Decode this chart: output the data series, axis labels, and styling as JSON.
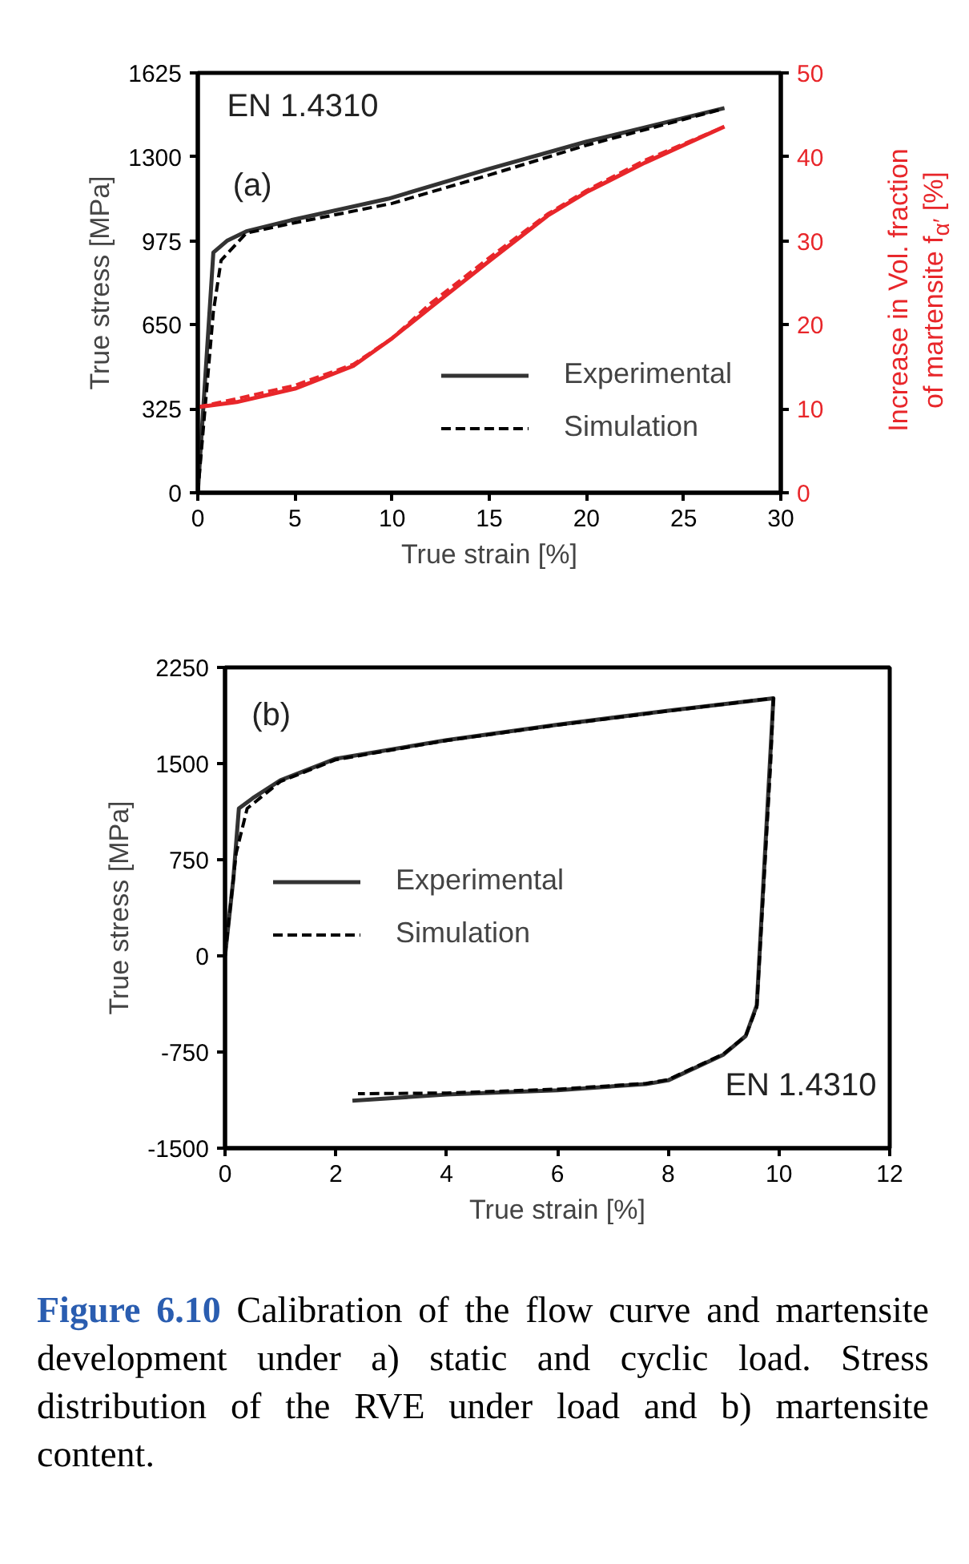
{
  "chart_data": [
    {
      "type": "line",
      "xlabel": "True strain [%]",
      "ylabel": "True stress [MPa]",
      "y2label": "Increase in Vol. fraction\nof martensite f$_{α′}$ [%]",
      "xlim": [
        0,
        30
      ],
      "xticks": [
        0,
        5,
        10,
        15,
        20,
        25,
        30
      ],
      "ylim": [
        0,
        1625
      ],
      "yticks": [
        0,
        325,
        650,
        975,
        1300,
        1625
      ],
      "y2lim": [
        0,
        50
      ],
      "y2ticks": [
        0,
        10,
        20,
        30,
        40,
        50
      ],
      "grid": false,
      "legend": "bottom right",
      "annotations": [
        "EN 1.4310",
        "(a)"
      ],
      "series": [
        {
          "name": "Experimental",
          "color": "#333333",
          "line_style": "solid",
          "x": [
            0,
            0.8,
            1.5,
            2.5,
            4.8,
            9.8,
            14.9,
            20,
            27.1
          ],
          "values": [
            0,
            930,
            975,
            1012,
            1055,
            1138,
            1252,
            1359,
            1489
          ]
        },
        {
          "name": "Simulation",
          "color": "#000000",
          "line_style": "dashed",
          "x": [
            0,
            0.8,
            1.2,
            2.5,
            5,
            10,
            15,
            20,
            27
          ],
          "values": [
            0,
            700,
            900,
            1005,
            1045,
            1120,
            1230,
            1345,
            1485
          ]
        },
        {
          "color": "#e8262a",
          "axis": "y2",
          "line_style": "solid",
          "x": [
            0,
            2,
            5,
            8,
            10,
            12,
            15,
            18,
            20,
            23,
            27.1
          ],
          "values": [
            10.2,
            10.8,
            12.4,
            15.1,
            18.4,
            22.1,
            27.6,
            33,
            35.8,
            39.3,
            43.6
          ]
        },
        {
          "color": "#e8262a",
          "axis": "y2",
          "line_style": "dashed",
          "x": [
            0,
            2,
            5,
            8,
            10,
            12,
            15,
            18,
            20,
            23,
            27
          ],
          "values": [
            10.2,
            11.2,
            12.8,
            15.3,
            18.4,
            22.6,
            28,
            33.2,
            36,
            39.6,
            43.5
          ]
        }
      ]
    },
    {
      "type": "line",
      "xlabel": "True strain [%]",
      "ylabel": "True stress [MPa]",
      "xlim": [
        0,
        12
      ],
      "xticks": [
        0,
        2,
        4,
        6,
        8,
        10,
        12
      ],
      "ylim": [
        -1500,
        2250
      ],
      "yticks": [
        -1500,
        -750,
        0,
        750,
        1500,
        2250
      ],
      "grid": false,
      "legend": "left",
      "annotations": [
        "(b)",
        "EN 1.4310",
        "Figure 6.10",
        "Calibration of the flow curve and martensite development under a) static and cyclic load. Stress distribution of the RVE under load and b) martensite content."
      ],
      "series": [
        {
          "name": "Experimental",
          "color": "#333333",
          "line_style": "solid",
          "x": [
            0,
            0.15,
            0.25,
            0.5,
            1,
            2,
            4,
            6,
            8,
            9.9,
            9.6,
            9.4,
            9,
            8,
            7.6,
            6,
            4,
            2.3
          ],
          "values": [
            0,
            600,
            1150,
            1230,
            1370,
            1538,
            1683,
            1803,
            1913,
            2010,
            -385,
            -625,
            -770,
            -971,
            -1000,
            -1048,
            -1082,
            -1130
          ]
        },
        {
          "name": "Simulation",
          "color": "#000000",
          "line_style": "dashed",
          "x": [
            0,
            0.2,
            0.4,
            1,
            2,
            4,
            6,
            8,
            9.9,
            9.85,
            9.6,
            9.4,
            9,
            8,
            7.6,
            6,
            4,
            2.4
          ],
          "values": [
            0,
            800,
            1150,
            1360,
            1530,
            1680,
            1800,
            1910,
            2010,
            1500,
            -400,
            -625,
            -765,
            -965,
            -995,
            -1040,
            -1070,
            -1075
          ]
        }
      ]
    }
  ]
}
